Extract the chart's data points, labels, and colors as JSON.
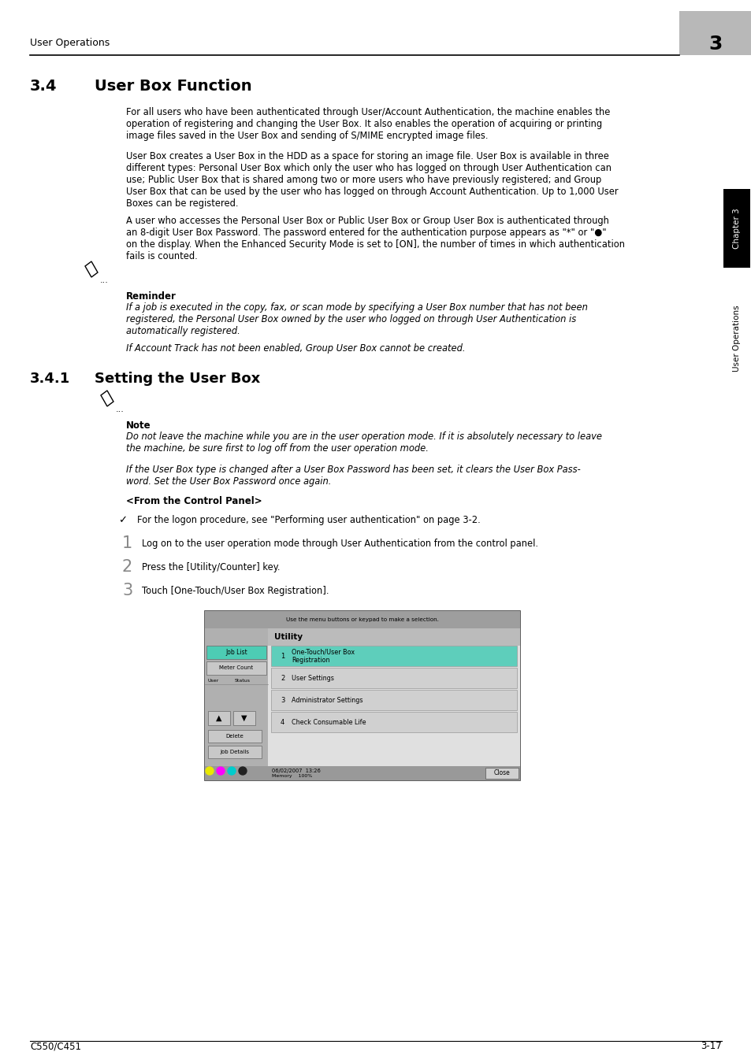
{
  "header_text": "User Operations",
  "header_chapter_num": "3",
  "footer_left": "C550/C451",
  "footer_right": "3-17",
  "section_num": "3.4",
  "section_title": "User Box Function",
  "para1": "For all users who have been authenticated through User/Account Authentication, the machine enables the\noperation of registering and changing the User Box. It also enables the operation of acquiring or printing\nimage files saved in the User Box and sending of S/MIME encrypted image files.",
  "para2": "User Box creates a User Box in the HDD as a space for storing an image file. User Box is available in three\ndifferent types: Personal User Box which only the user who has logged on through User Authentication can\nuse; Public User Box that is shared among two or more users who have previously registered; and Group\nUser Box that can be used by the user who has logged on through Account Authentication. Up to 1,000 User\nBoxes can be registered.",
  "para3": "A user who accesses the Personal User Box or Public User Box or Group User Box is authenticated through\nan 8-digit User Box Password. The password entered for the authentication purpose appears as \"*\" or \"●\"\non the display. When the Enhanced Security Mode is set to [ON], the number of times in which authentication\nfails is counted.",
  "reminder_label": "Reminder",
  "reminder_italic1": "If a job is executed in the copy, fax, or scan mode by specifying a User Box number that has not been\nregistered, the Personal User Box owned by the user who logged on through User Authentication is\nautomatically registered.",
  "reminder_italic2": "If Account Track has not been enabled, Group User Box cannot be created.",
  "subsection_num": "3.4.1",
  "subsection_title": "Setting the User Box",
  "note_label": "Note",
  "note_italic1": "Do not leave the machine while you are in the user operation mode. If it is absolutely necessary to leave\nthe machine, be sure first to log off from the user operation mode.",
  "note_italic2": "If the User Box type is changed after a User Box Password has been set, it clears the User Box Pass-\nword. Set the User Box Password once again.",
  "from_control_panel": "<From the Control Panel>",
  "checkmark_text": "For the logon procedure, see \"Performing user authentication\" on page 3-2.",
  "step1": "Log on to the user operation mode through User Authentication from the control panel.",
  "step2": "Press the [Utility/Counter] key.",
  "step3": "Touch [One-Touch/User Box Registration].",
  "sidebar_chapter": "Chapter 3",
  "sidebar_ops": "User Operations",
  "bg_color": "#ffffff",
  "text_color": "#000000",
  "gray_header_bg": "#b8b8b8"
}
